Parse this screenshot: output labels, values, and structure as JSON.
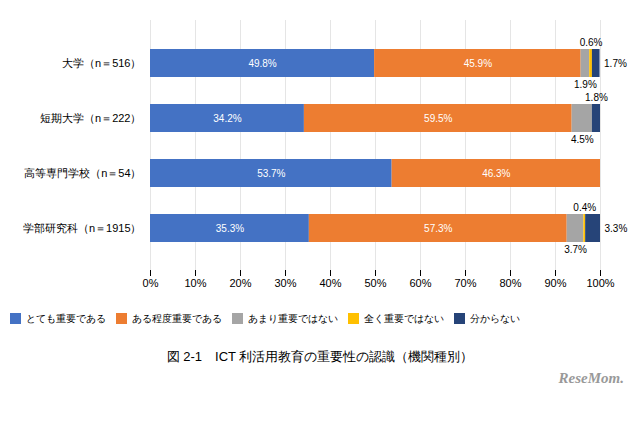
{
  "chart_data": {
    "type": "bar",
    "orientation": "horizontal",
    "stacked": true,
    "title": "図 2-1　ICT 利活用教育の重要性の認識（機関種別）",
    "categories": [
      "大学（n＝516）",
      "短期大学（n＝222）",
      "高等専門学校（n＝54）",
      "学部研究科（n＝1915）"
    ],
    "series": [
      {
        "name": "とても重要である",
        "color": "#4472c4",
        "values": [
          49.8,
          34.2,
          53.7,
          35.3
        ],
        "value_labels": [
          "49.8%",
          "34.2%",
          "53.7%",
          "35.3%"
        ]
      },
      {
        "name": "ある程度重要である",
        "color": "#ed7d31",
        "values": [
          45.9,
          59.5,
          46.3,
          57.3
        ],
        "value_labels": [
          "45.9%",
          "59.5%",
          "46.3%",
          "57.3%"
        ]
      },
      {
        "name": "あまり重要ではない",
        "color": "#a5a5a5",
        "values": [
          1.9,
          4.5,
          0.0,
          3.7
        ],
        "value_labels": [
          "1.9%",
          "4.5%",
          null,
          "3.7%"
        ]
      },
      {
        "name": "全く重要ではない",
        "color": "#ffc000",
        "values": [
          0.6,
          0.0,
          0.0,
          0.4
        ],
        "value_labels": [
          "0.6%",
          null,
          null,
          "0.4%"
        ]
      },
      {
        "name": "分からない",
        "color": "#264478",
        "values": [
          1.7,
          1.8,
          0.0,
          3.3
        ],
        "value_labels": [
          "1.7%",
          "1.8%",
          null,
          "3.3%"
        ]
      }
    ],
    "xlim": [
      0,
      100
    ],
    "xticks": [
      {
        "value": 0,
        "label": "0%"
      },
      {
        "value": 10,
        "label": "10%"
      },
      {
        "value": 20,
        "label": "20%"
      },
      {
        "value": 30,
        "label": "30%"
      },
      {
        "value": 40,
        "label": "40%"
      },
      {
        "value": 50,
        "label": "50%"
      },
      {
        "value": 60,
        "label": "60%"
      },
      {
        "value": 70,
        "label": "70%"
      },
      {
        "value": 80,
        "label": "80%"
      },
      {
        "value": 90,
        "label": "90%"
      },
      {
        "value": 100,
        "label": "100%"
      }
    ],
    "grid": true,
    "data_labels": true,
    "legend": "bottom",
    "annotations": [
      "ReseMom."
    ]
  }
}
